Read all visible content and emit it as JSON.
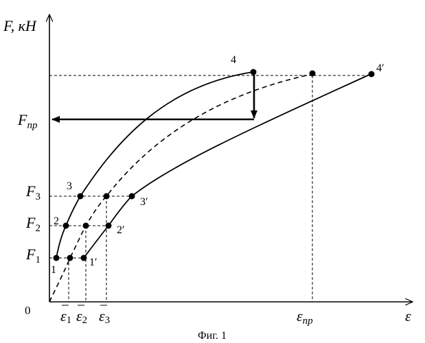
{
  "axes": {
    "y_label_F": "F",
    "y_label_unit": ", кН",
    "x_label": "ε",
    "origin_label": "0"
  },
  "y_ticks": {
    "F_np_main": "F",
    "F_np_sub": "пр",
    "F3_main": "F",
    "F3_sub": "3",
    "F2_main": "F",
    "F2_sub": "2",
    "F1_main": "F",
    "F1_sub": "1"
  },
  "x_ticks": {
    "e1_main": "ε",
    "e1_sub": "1",
    "e2_main": "ε",
    "e2_sub": "2",
    "e3_main": "ε",
    "e3_sub": "3",
    "enp_main": "ε",
    "enp_sub": "пр"
  },
  "point_labels": {
    "p1": "1",
    "p2": "2",
    "p3": "3",
    "p4": "4",
    "p1p": "1′",
    "p2p": "2′",
    "p3p": "3′",
    "p4p": "4′"
  },
  "caption": "Фиг. 1",
  "colors": {
    "ink": "#000000",
    "background": "#ffffff"
  }
}
